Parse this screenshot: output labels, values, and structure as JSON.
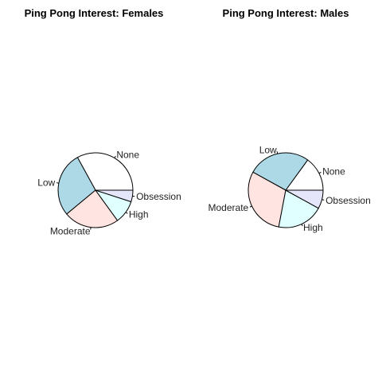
{
  "chart_data": [
    {
      "type": "pie",
      "title": "Ping Pong Interest:  Females",
      "start_angle_deg": 0,
      "direction": "counterclockwise",
      "slices": [
        {
          "label": "None",
          "value": 33,
          "color": "#ffffff"
        },
        {
          "label": "Low",
          "value": 28,
          "color": "#add8e6"
        },
        {
          "label": "Moderate",
          "value": 24,
          "color": "#ffe4e1"
        },
        {
          "label": "High",
          "value": 10,
          "color": "#e0ffff"
        },
        {
          "label": "Obsession",
          "value": 5,
          "color": "#e6e6fa"
        }
      ]
    },
    {
      "type": "pie",
      "title": "Ping Pong Interest:  Males",
      "start_angle_deg": 0,
      "direction": "counterclockwise",
      "slices": [
        {
          "label": "None",
          "value": 15,
          "color": "#ffffff"
        },
        {
          "label": "Low",
          "value": 27,
          "color": "#add8e6"
        },
        {
          "label": "Moderate",
          "value": 30,
          "color": "#ffe4e1"
        },
        {
          "label": "High",
          "value": 20,
          "color": "#e0ffff"
        },
        {
          "label": "Obsession",
          "value": 8,
          "color": "#e6e6fa"
        }
      ]
    }
  ]
}
